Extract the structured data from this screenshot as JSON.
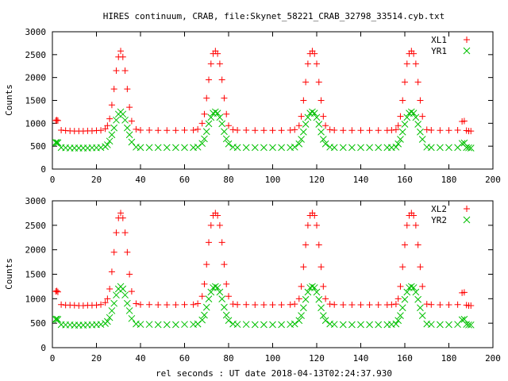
{
  "title": "HIRES continuum, CRAB, file:Skynet_58221_CRAB_32798_33514.cyb.txt",
  "xlabel": "rel seconds : UT date 2018-04-13T02:24:37.930",
  "chart_data": [
    {
      "type": "scatter",
      "ylabel": "Counts",
      "xlim": [
        0,
        200
      ],
      "ylim": [
        0,
        3000
      ],
      "xticks": [
        0,
        20,
        40,
        60,
        80,
        100,
        120,
        140,
        160,
        180,
        200
      ],
      "yticks": [
        0,
        500,
        1000,
        1500,
        2000,
        2500,
        3000
      ],
      "legend_position": "top-right",
      "series": [
        {
          "name": "XL1",
          "color": "#ff0000",
          "marker": "plus",
          "x": [
            1.5,
            2.0,
            2.5,
            4,
            6,
            8,
            10,
            12,
            14,
            16,
            18,
            20,
            22,
            24,
            25,
            26,
            27,
            28,
            29,
            30,
            31,
            32,
            33,
            34,
            35,
            36,
            38,
            40,
            44,
            48,
            52,
            56,
            60,
            64,
            66,
            68,
            69,
            70,
            71,
            72,
            73,
            74,
            75,
            76,
            77,
            78,
            79,
            80,
            82,
            84,
            88,
            92,
            96,
            100,
            104,
            108,
            110,
            112,
            113,
            114,
            115,
            116,
            117,
            118,
            119,
            120,
            121,
            122,
            123,
            124,
            126,
            128,
            132,
            136,
            140,
            144,
            148,
            152,
            154,
            156,
            157,
            158,
            159,
            160,
            161,
            162,
            163,
            164,
            165,
            166,
            167,
            168,
            170,
            172,
            176,
            180,
            184,
            186,
            187,
            188,
            189,
            190
          ],
          "y": [
            1060,
            1070,
            1060,
            850,
            840,
            835,
            830,
            830,
            830,
            835,
            835,
            840,
            845,
            880,
            950,
            1100,
            1400,
            1750,
            2150,
            2450,
            2580,
            2450,
            2150,
            1750,
            1350,
            1050,
            870,
            850,
            850,
            845,
            845,
            845,
            850,
            850,
            870,
            1000,
            1200,
            1550,
            1950,
            2300,
            2520,
            2580,
            2520,
            2300,
            1950,
            1550,
            1200,
            950,
            860,
            850,
            850,
            845,
            845,
            845,
            845,
            850,
            860,
            950,
            1150,
            1500,
            1900,
            2300,
            2520,
            2580,
            2520,
            2300,
            1900,
            1500,
            1150,
            950,
            860,
            850,
            845,
            845,
            845,
            845,
            845,
            845,
            850,
            860,
            950,
            1150,
            1500,
            1900,
            2300,
            2520,
            2580,
            2520,
            2300,
            1900,
            1500,
            1150,
            860,
            850,
            845,
            845,
            850,
            1040,
            1050,
            840,
            830,
            830
          ]
        },
        {
          "name": "YR1",
          "color": "#00c000",
          "marker": "cross",
          "x": [
            1.5,
            2.0,
            2.5,
            4,
            6,
            8,
            10,
            12,
            14,
            16,
            18,
            20,
            22,
            24,
            25,
            26,
            27,
            28,
            29,
            30,
            31,
            32,
            33,
            34,
            35,
            36,
            38,
            40,
            44,
            48,
            52,
            56,
            60,
            64,
            66,
            68,
            69,
            70,
            71,
            72,
            73,
            74,
            75,
            76,
            77,
            78,
            79,
            80,
            82,
            84,
            88,
            92,
            96,
            100,
            104,
            108,
            110,
            112,
            113,
            114,
            115,
            116,
            117,
            118,
            119,
            120,
            121,
            122,
            123,
            124,
            126,
            128,
            132,
            136,
            140,
            144,
            148,
            152,
            154,
            156,
            157,
            158,
            159,
            160,
            161,
            162,
            163,
            164,
            165,
            166,
            167,
            168,
            170,
            172,
            176,
            180,
            184,
            186,
            187,
            188,
            189,
            190
          ],
          "y": [
            580,
            580,
            575,
            470,
            465,
            460,
            460,
            460,
            460,
            460,
            465,
            465,
            470,
            490,
            530,
            610,
            750,
            900,
            1070,
            1200,
            1250,
            1200,
            1070,
            900,
            750,
            590,
            480,
            470,
            470,
            470,
            470,
            470,
            470,
            470,
            480,
            560,
            660,
            820,
            990,
            1130,
            1220,
            1250,
            1220,
            1130,
            990,
            820,
            660,
            550,
            480,
            470,
            470,
            470,
            470,
            470,
            470,
            470,
            480,
            550,
            650,
            810,
            980,
            1130,
            1220,
            1250,
            1220,
            1130,
            980,
            810,
            650,
            550,
            480,
            470,
            470,
            470,
            470,
            470,
            470,
            470,
            470,
            480,
            550,
            650,
            810,
            980,
            1130,
            1220,
            1250,
            1220,
            1130,
            980,
            810,
            650,
            480,
            470,
            470,
            470,
            470,
            560,
            570,
            470,
            465,
            460
          ]
        }
      ]
    },
    {
      "type": "scatter",
      "ylabel": "Counts",
      "xlim": [
        0,
        200
      ],
      "ylim": [
        0,
        3000
      ],
      "xticks": [
        0,
        20,
        40,
        60,
        80,
        100,
        120,
        140,
        160,
        180,
        200
      ],
      "yticks": [
        0,
        500,
        1000,
        1500,
        2000,
        2500,
        3000
      ],
      "legend_position": "top-right",
      "series": [
        {
          "name": "XL2",
          "color": "#ff0000",
          "marker": "plus",
          "x": [
            1.5,
            2.0,
            2.5,
            4,
            6,
            8,
            10,
            12,
            14,
            16,
            18,
            20,
            22,
            24,
            25,
            26,
            27,
            28,
            29,
            30,
            31,
            32,
            33,
            34,
            35,
            36,
            38,
            40,
            44,
            48,
            52,
            56,
            60,
            64,
            66,
            68,
            69,
            70,
            71,
            72,
            73,
            74,
            75,
            76,
            77,
            78,
            79,
            80,
            82,
            84,
            88,
            92,
            96,
            100,
            104,
            108,
            110,
            112,
            113,
            114,
            115,
            116,
            117,
            118,
            119,
            120,
            121,
            122,
            123,
            124,
            126,
            128,
            132,
            136,
            140,
            144,
            148,
            152,
            154,
            156,
            157,
            158,
            159,
            160,
            161,
            162,
            163,
            164,
            165,
            166,
            167,
            168,
            170,
            172,
            176,
            180,
            184,
            186,
            187,
            188,
            189,
            190
          ],
          "y": [
            1150,
            1160,
            1140,
            880,
            870,
            870,
            865,
            860,
            860,
            865,
            865,
            870,
            880,
            920,
            1000,
            1200,
            1550,
            1950,
            2350,
            2650,
            2750,
            2650,
            2350,
            1950,
            1500,
            1150,
            900,
            880,
            880,
            875,
            875,
            875,
            880,
            880,
            900,
            1050,
            1300,
            1700,
            2150,
            2500,
            2700,
            2750,
            2700,
            2500,
            2150,
            1700,
            1300,
            1050,
            890,
            880,
            880,
            875,
            875,
            875,
            875,
            880,
            890,
            1000,
            1250,
            1650,
            2100,
            2500,
            2700,
            2750,
            2700,
            2500,
            2100,
            1650,
            1250,
            1000,
            890,
            880,
            875,
            875,
            875,
            875,
            875,
            875,
            880,
            890,
            1000,
            1250,
            1650,
            2100,
            2500,
            2700,
            2750,
            2700,
            2500,
            2100,
            1650,
            1250,
            890,
            880,
            875,
            875,
            880,
            1120,
            1130,
            870,
            860,
            860
          ]
        },
        {
          "name": "YR2",
          "color": "#00c000",
          "marker": "cross",
          "x": [
            1.5,
            2.0,
            2.5,
            4,
            6,
            8,
            10,
            12,
            14,
            16,
            18,
            20,
            22,
            24,
            25,
            26,
            27,
            28,
            29,
            30,
            31,
            32,
            33,
            34,
            35,
            36,
            38,
            40,
            44,
            48,
            52,
            56,
            60,
            64,
            66,
            68,
            69,
            70,
            71,
            72,
            73,
            74,
            75,
            76,
            77,
            78,
            79,
            80,
            82,
            84,
            88,
            92,
            96,
            100,
            104,
            108,
            110,
            112,
            113,
            114,
            115,
            116,
            117,
            118,
            119,
            120,
            121,
            122,
            123,
            124,
            126,
            128,
            132,
            136,
            140,
            144,
            148,
            152,
            154,
            156,
            157,
            158,
            159,
            160,
            161,
            162,
            163,
            164,
            165,
            166,
            167,
            168,
            170,
            172,
            176,
            180,
            184,
            186,
            187,
            188,
            189,
            190
          ],
          "y": [
            580,
            585,
            575,
            470,
            465,
            465,
            460,
            460,
            460,
            465,
            465,
            470,
            475,
            495,
            535,
            615,
            755,
            905,
            1075,
            1200,
            1250,
            1200,
            1075,
            905,
            755,
            595,
            485,
            475,
            475,
            470,
            470,
            470,
            475,
            475,
            485,
            565,
            665,
            825,
            995,
            1135,
            1225,
            1250,
            1225,
            1135,
            995,
            825,
            665,
            555,
            485,
            475,
            475,
            470,
            470,
            470,
            470,
            475,
            485,
            555,
            655,
            815,
            985,
            1135,
            1225,
            1250,
            1225,
            1135,
            985,
            815,
            655,
            555,
            485,
            475,
            470,
            470,
            470,
            470,
            470,
            470,
            475,
            485,
            555,
            655,
            815,
            985,
            1135,
            1225,
            1250,
            1225,
            1135,
            985,
            815,
            655,
            485,
            475,
            470,
            470,
            475,
            570,
            580,
            475,
            465,
            465
          ]
        }
      ]
    }
  ]
}
